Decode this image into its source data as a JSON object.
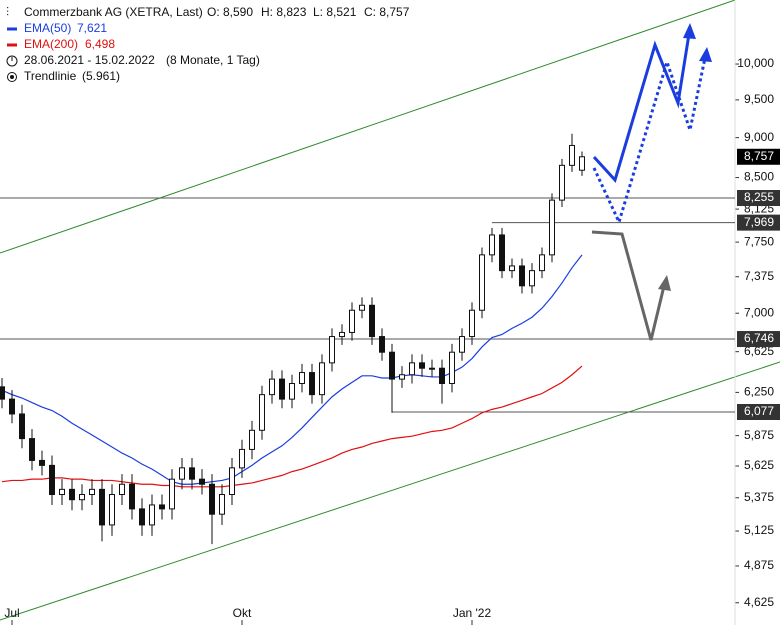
{
  "chart_data": {
    "type": "candlestick",
    "title": "Commerzbank AG (XETRA, Last)",
    "header_values": [
      "O: 8,590",
      "H: 8,823",
      "L: 8,521",
      "C: 8,757"
    ],
    "period": "28.06.2021 - 15.02.2022",
    "period_length": "(8 Monate, 1 Tag)",
    "trendline_label": "Trendlinie",
    "trendline_value": "(5.961)",
    "log_scale": true,
    "ylim": [
      4.48,
      10.96
    ],
    "yticks": [
      {
        "value": 4.625,
        "label": "4,625"
      },
      {
        "value": 4.875,
        "label": "4,875"
      },
      {
        "value": 5.125,
        "label": "5,125"
      },
      {
        "value": 5.375,
        "label": "5,375"
      },
      {
        "value": 5.625,
        "label": "5,625"
      },
      {
        "value": 5.875,
        "label": "5,875"
      },
      {
        "value": 6.25,
        "label": "6,250"
      },
      {
        "value": 6.625,
        "label": "6,625"
      },
      {
        "value": 7,
        "label": "7,000"
      },
      {
        "value": 7.375,
        "label": "7,375"
      },
      {
        "value": 7.75,
        "label": "7,750"
      },
      {
        "value": 8.125,
        "label": "8,125"
      },
      {
        "value": 8.5,
        "label": "8,500"
      },
      {
        "value": 9,
        "label": "9,000"
      },
      {
        "value": 9.5,
        "label": "9,500"
      },
      {
        "value": 10,
        "label": "10,000"
      }
    ],
    "categories": [
      null,
      "Jul",
      null,
      null,
      null,
      null,
      null,
      null,
      null,
      null,
      null,
      null,
      null,
      null,
      null,
      null,
      null,
      null,
      null,
      null,
      null,
      null,
      null,
      null,
      "Okt",
      null,
      null,
      null,
      null,
      null,
      null,
      null,
      null,
      null,
      null,
      null,
      null,
      null,
      null,
      null,
      null,
      null,
      null,
      null,
      null,
      null,
      null,
      "Jan '22",
      null,
      null,
      null,
      null,
      null,
      null,
      null,
      null,
      null,
      null,
      null
    ],
    "open": [
      6.3,
      6.19,
      6.06,
      5.85,
      5.67,
      5.63,
      5.4,
      5.44,
      5.36,
      5.4,
      5.44,
      5.17,
      5.4,
      5.48,
      5.29,
      5.17,
      5.32,
      5.29,
      5.52,
      5.61,
      5.52,
      5.48,
      5.25,
      5.4,
      5.61,
      5.76,
      5.92,
      6.23,
      6.37,
      6.19,
      6.33,
      6.43,
      6.23,
      6.52,
      6.77,
      6.81,
      7.03,
      7.08,
      6.77,
      6.62,
      6.37,
      6.41,
      6.52,
      6.47,
      6.47,
      6.33,
      6.62,
      6.77,
      7.03,
      7.61,
      7.83,
      7.44,
      7.49,
      7.28,
      7.44,
      7.61,
      8.23,
      8.65,
      8.59
    ],
    "high": [
      6.38,
      6.27,
      6.14,
      5.93,
      5.75,
      5.71,
      5.52,
      5.52,
      5.48,
      5.52,
      5.52,
      5.48,
      5.56,
      5.56,
      5.37,
      5.4,
      5.4,
      5.6,
      5.69,
      5.69,
      5.6,
      5.56,
      5.48,
      5.69,
      5.84,
      6.0,
      6.31,
      6.45,
      6.45,
      6.41,
      6.51,
      6.51,
      6.6,
      6.85,
      6.89,
      7.11,
      7.16,
      7.16,
      6.85,
      6.7,
      6.49,
      6.6,
      6.6,
      6.55,
      6.55,
      6.7,
      6.85,
      7.11,
      7.69,
      7.91,
      7.91,
      7.57,
      7.57,
      7.52,
      7.69,
      8.31,
      8.73,
      9.05,
      8.823
    ],
    "low": [
      6.11,
      5.98,
      5.77,
      5.59,
      5.55,
      5.32,
      5.32,
      5.28,
      5.28,
      5.32,
      5.05,
      5.09,
      5.32,
      5.21,
      5.09,
      5.09,
      5.21,
      5.21,
      5.44,
      5.44,
      5.4,
      5.03,
      5.17,
      5.32,
      5.53,
      5.68,
      5.84,
      6.15,
      6.11,
      6.11,
      6.25,
      6.15,
      6.15,
      6.44,
      6.69,
      6.73,
      6.95,
      6.69,
      6.54,
      6.07,
      6.29,
      6.33,
      6.39,
      6.39,
      6.15,
      6.25,
      6.54,
      6.69,
      6.95,
      7.53,
      7.36,
      7.36,
      7.2,
      7.2,
      7.36,
      7.53,
      8.15,
      8.57,
      8.521
    ],
    "close": [
      6.19,
      6.06,
      5.85,
      5.67,
      5.63,
      5.4,
      5.44,
      5.36,
      5.4,
      5.44,
      5.17,
      5.4,
      5.48,
      5.29,
      5.17,
      5.32,
      5.29,
      5.52,
      5.61,
      5.52,
      5.48,
      5.25,
      5.4,
      5.61,
      5.76,
      5.92,
      6.23,
      6.37,
      6.19,
      6.33,
      6.43,
      6.23,
      6.52,
      6.77,
      6.81,
      7.03,
      7.08,
      6.77,
      6.62,
      6.37,
      6.41,
      6.52,
      6.47,
      6.47,
      6.33,
      6.62,
      6.77,
      7.03,
      7.61,
      7.83,
      7.44,
      7.49,
      7.28,
      7.44,
      7.61,
      8.23,
      8.65,
      8.9,
      8.757
    ],
    "series": [
      {
        "name": "EMA(50)",
        "value_label": "7,621",
        "color": "#1a3de0",
        "values": [
          6.27,
          6.23,
          6.2,
          6.16,
          6.12,
          6.09,
          6.04,
          5.98,
          5.93,
          5.88,
          5.83,
          5.78,
          5.73,
          5.69,
          5.64,
          5.6,
          5.55,
          5.5,
          5.48,
          5.48,
          5.49,
          5.5,
          5.51,
          5.53,
          5.58,
          5.63,
          5.69,
          5.74,
          5.79,
          5.86,
          5.94,
          6.03,
          6.12,
          6.21,
          6.28,
          6.34,
          6.4,
          6.4,
          6.38,
          6.38,
          6.4,
          6.41,
          6.4,
          6.39,
          6.39,
          6.43,
          6.48,
          6.56,
          6.67,
          6.76,
          6.79,
          6.85,
          6.9,
          6.96,
          7.05,
          7.17,
          7.31,
          7.47,
          7.61
        ]
      },
      {
        "name": "EMA(200)",
        "value_label": "6,498",
        "color": "#e01010",
        "values": [
          5.5,
          5.51,
          5.51,
          5.52,
          5.52,
          5.53,
          5.53,
          5.52,
          5.52,
          5.51,
          5.51,
          5.51,
          5.5,
          5.49,
          5.48,
          5.48,
          5.47,
          5.47,
          5.46,
          5.46,
          5.46,
          5.46,
          5.46,
          5.47,
          5.48,
          5.49,
          5.51,
          5.53,
          5.55,
          5.58,
          5.6,
          5.63,
          5.66,
          5.69,
          5.73,
          5.76,
          5.78,
          5.81,
          5.83,
          5.85,
          5.86,
          5.87,
          5.89,
          5.91,
          5.92,
          5.94,
          5.98,
          6.02,
          6.07,
          6.1,
          6.12,
          6.15,
          6.18,
          6.21,
          6.24,
          6.29,
          6.34,
          6.41,
          6.49
        ]
      }
    ],
    "levels": [
      {
        "value": 8.255,
        "label": "8,255"
      },
      {
        "value": 7.969,
        "label": "7,969"
      },
      {
        "value": 6.746,
        "label": "6,746"
      },
      {
        "value": 6.077,
        "label": "6,077"
      }
    ],
    "last_price": {
      "value": 8.757,
      "label": "8,757"
    }
  }
}
